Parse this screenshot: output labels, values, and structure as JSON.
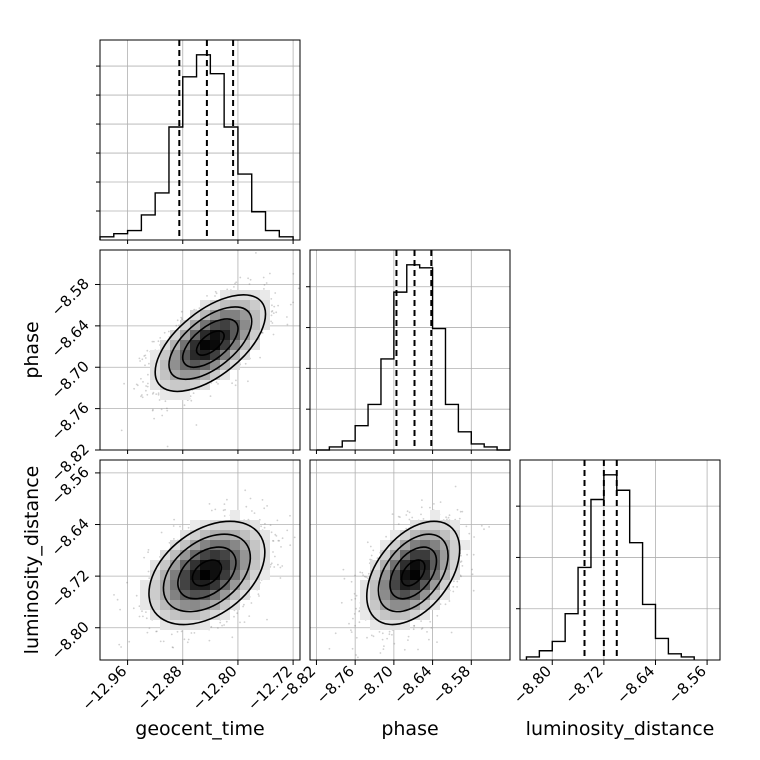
{
  "chart_data": {
    "type": "corner",
    "parameters": [
      "geocent_time",
      "phase",
      "luminosity_distance"
    ],
    "grid": true,
    "histograms": [
      {
        "parameter": "geocent_time",
        "bin_edges": [
          -13.0,
          -12.98,
          -12.96,
          -12.94,
          -12.92,
          -12.9,
          -12.88,
          -12.86,
          -12.84,
          -12.82,
          -12.8,
          -12.78,
          -12.76,
          -12.74,
          -12.72
        ],
        "counts": [
          1,
          2,
          3,
          8,
          15,
          36,
          52,
          59,
          53,
          36,
          21,
          9,
          3,
          1
        ],
        "quantiles": [
          -12.885,
          -12.845,
          -12.807
        ],
        "xlim": [
          -13.0,
          -12.71
        ]
      },
      {
        "parameter": "phase",
        "bin_edges": [
          -8.82,
          -8.8,
          -8.78,
          -8.76,
          -8.74,
          -8.72,
          -8.7,
          -8.68,
          -8.66,
          -8.64,
          -8.62,
          -8.6,
          -8.58,
          -8.56,
          -8.54,
          -8.52
        ],
        "counts": [
          0,
          1,
          3,
          8,
          15,
          30,
          52,
          61,
          60,
          40,
          15,
          6,
          2,
          1,
          0
        ],
        "quantiles": [
          -8.696,
          -8.668,
          -8.642
        ],
        "xlim": [
          -8.83,
          -8.52
        ]
      },
      {
        "parameter": "luminosity_distance",
        "bin_edges": [
          -8.84,
          -8.82,
          -8.8,
          -8.78,
          -8.76,
          -8.74,
          -8.72,
          -8.7,
          -8.68,
          -8.66,
          -8.64,
          -8.62,
          -8.6,
          -8.58
        ],
        "counts": [
          1,
          3,
          6,
          15,
          30,
          52,
          60,
          55,
          38,
          18,
          7,
          2,
          1
        ],
        "quantiles": [
          -8.75,
          -8.72,
          -8.7
        ],
        "xlim": [
          -8.85,
          -8.54
        ]
      }
    ],
    "pairs": [
      {
        "x": "geocent_time",
        "y": "phase",
        "xlim": [
          -13.0,
          -12.71
        ],
        "ylim": [
          -8.82,
          -8.53
        ],
        "mean": [
          -12.84,
          -8.665
        ],
        "sd": [
          0.04,
          0.035
        ],
        "correlation": 0.6
      },
      {
        "x": "geocent_time",
        "y": "luminosity_distance",
        "xlim": [
          -13.0,
          -12.71
        ],
        "ylim": [
          -8.85,
          -8.54
        ],
        "mean": [
          -12.845,
          -8.715
        ],
        "sd": [
          0.042,
          0.04
        ],
        "correlation": 0.4
      },
      {
        "x": "phase",
        "y": "luminosity_distance",
        "xlim": [
          -8.83,
          -8.52
        ],
        "ylim": [
          -8.85,
          -8.54
        ],
        "mean": [
          -8.67,
          -8.715
        ],
        "sd": [
          0.036,
          0.04
        ],
        "correlation": 0.45
      }
    ],
    "x_ticks": {
      "geocent_time": [
        "−12.96",
        "−12.88",
        "−12.80",
        "−12.72"
      ],
      "phase": [
        "−8.82",
        "−8.76",
        "−8.70",
        "−8.64",
        "−8.58"
      ],
      "luminosity_distance": [
        "−8.80",
        "−8.72",
        "−8.64",
        "−8.56"
      ]
    },
    "y_ticks": {
      "phase": [
        "−8.58",
        "−8.64",
        "−8.70",
        "−8.76",
        "−8.82"
      ],
      "luminosity_distance": [
        "−8.56",
        "−8.64",
        "−8.72",
        "−8.80"
      ]
    },
    "x_tick_values": {
      "geocent_time": [
        -12.96,
        -12.88,
        -12.8,
        -12.72
      ],
      "phase": [
        -8.82,
        -8.76,
        -8.7,
        -8.64,
        -8.58
      ],
      "luminosity_distance": [
        -8.8,
        -8.72,
        -8.64,
        -8.56
      ]
    },
    "y_tick_values": {
      "phase": [
        -8.58,
        -8.64,
        -8.7,
        -8.76,
        -8.82
      ],
      "luminosity_distance": [
        -8.56,
        -8.64,
        -8.72,
        -8.8
      ]
    },
    "xlabels": [
      "geocent_time",
      "phase",
      "luminosity_distance"
    ],
    "ylabels": [
      "phase",
      "luminosity_distance"
    ]
  }
}
